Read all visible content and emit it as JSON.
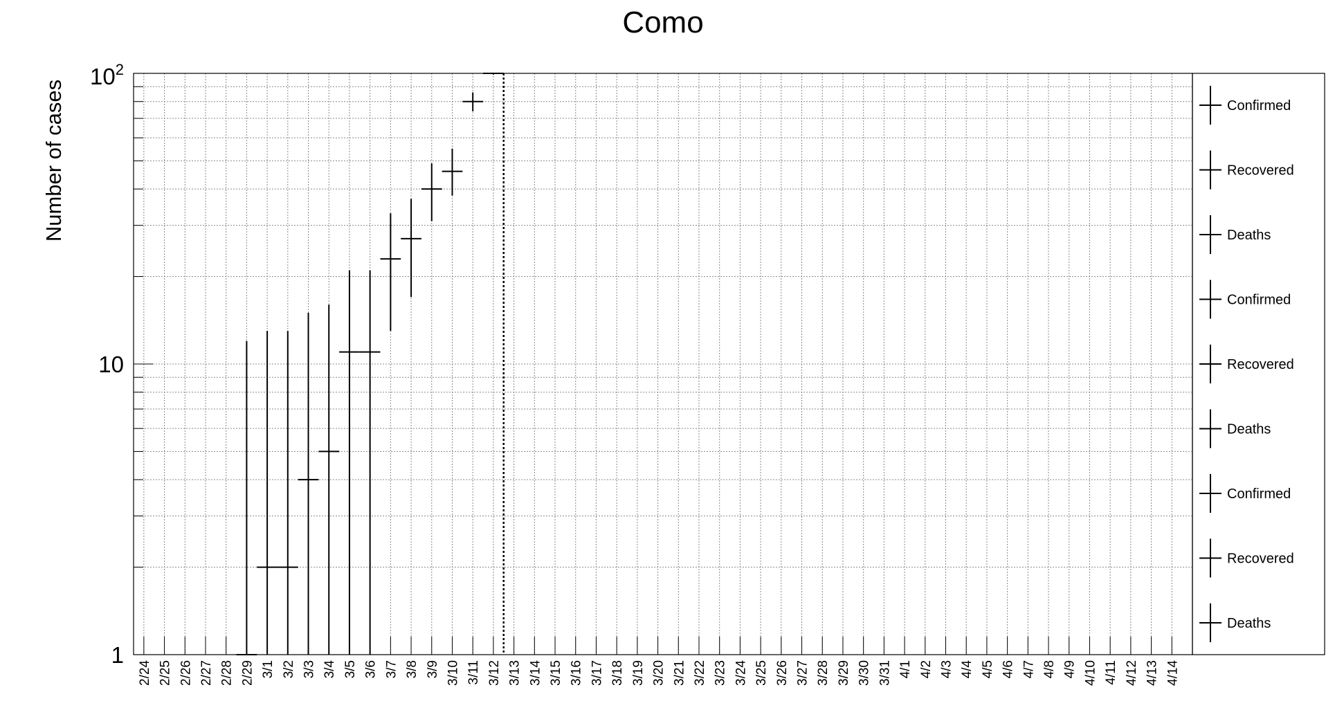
{
  "chart_data": {
    "type": "scatter",
    "title": "Como",
    "xlabel": "",
    "ylabel": "Number of cases",
    "y_scale": "log",
    "ylim": [
      1,
      100
    ],
    "y_tick_labels": [
      "1",
      "10",
      "10^2"
    ],
    "grid": true,
    "legend_position": "right",
    "legend": [
      "Confirmed",
      "Recovered",
      "Deaths",
      "Confirmed",
      "Recovered",
      "Deaths",
      "Confirmed",
      "Recovered",
      "Deaths"
    ],
    "categories": [
      "2/24",
      "2/25",
      "2/26",
      "2/27",
      "2/28",
      "2/29",
      "3/1",
      "3/2",
      "3/3",
      "3/4",
      "3/5",
      "3/6",
      "3/7",
      "3/8",
      "3/9",
      "3/10",
      "3/11",
      "3/12",
      "3/13",
      "3/14",
      "3/15",
      "3/16",
      "3/17",
      "3/18",
      "3/19",
      "3/20",
      "3/21",
      "3/22",
      "3/23",
      "3/24",
      "3/25",
      "3/26",
      "3/27",
      "3/28",
      "3/29",
      "3/30",
      "3/31",
      "4/1",
      "4/2",
      "4/3",
      "4/4",
      "4/5",
      "4/6",
      "4/7",
      "4/8",
      "4/9",
      "4/10",
      "4/11",
      "4/12",
      "4/13",
      "4/14"
    ],
    "series": [
      {
        "name": "Confirmed",
        "color": "#000000",
        "points": [
          {
            "x": "2/29",
            "y": 1,
            "err_low": 1,
            "err_high": 12
          },
          {
            "x": "3/1",
            "y": 2,
            "x_half_width": 0.5,
            "err_low": 1,
            "err_high": 13
          },
          {
            "x": "3/2",
            "y": 2,
            "x_half_width": 0.5,
            "err_low": 1,
            "err_high": 13
          },
          {
            "x": "3/3",
            "y": 4,
            "err_low": 1,
            "err_high": 15
          },
          {
            "x": "3/4",
            "y": 5,
            "err_low": 1,
            "err_high": 16
          },
          {
            "x": "3/5",
            "y": 11,
            "x_half_width": 0.5,
            "err_low": 1,
            "err_high": 21
          },
          {
            "x": "3/6",
            "y": 11,
            "x_half_width": 0.5,
            "err_low": 1,
            "err_high": 21
          },
          {
            "x": "3/7",
            "y": 23,
            "err_low": 13,
            "err_high": 33
          },
          {
            "x": "3/8",
            "y": 27,
            "err_low": 17,
            "err_high": 37
          },
          {
            "x": "3/9",
            "y": 40,
            "err_low": 31,
            "err_high": 49
          },
          {
            "x": "3/10",
            "y": 46,
            "err_low": 38,
            "err_high": 55
          },
          {
            "x": "3/11",
            "y": 80,
            "err_low": 74,
            "err_high": 86
          },
          {
            "x": "3/12",
            "y": 100,
            "err_low": 99,
            "err_high": 100
          }
        ]
      }
    ],
    "vertical_marker_after": "3/12"
  }
}
